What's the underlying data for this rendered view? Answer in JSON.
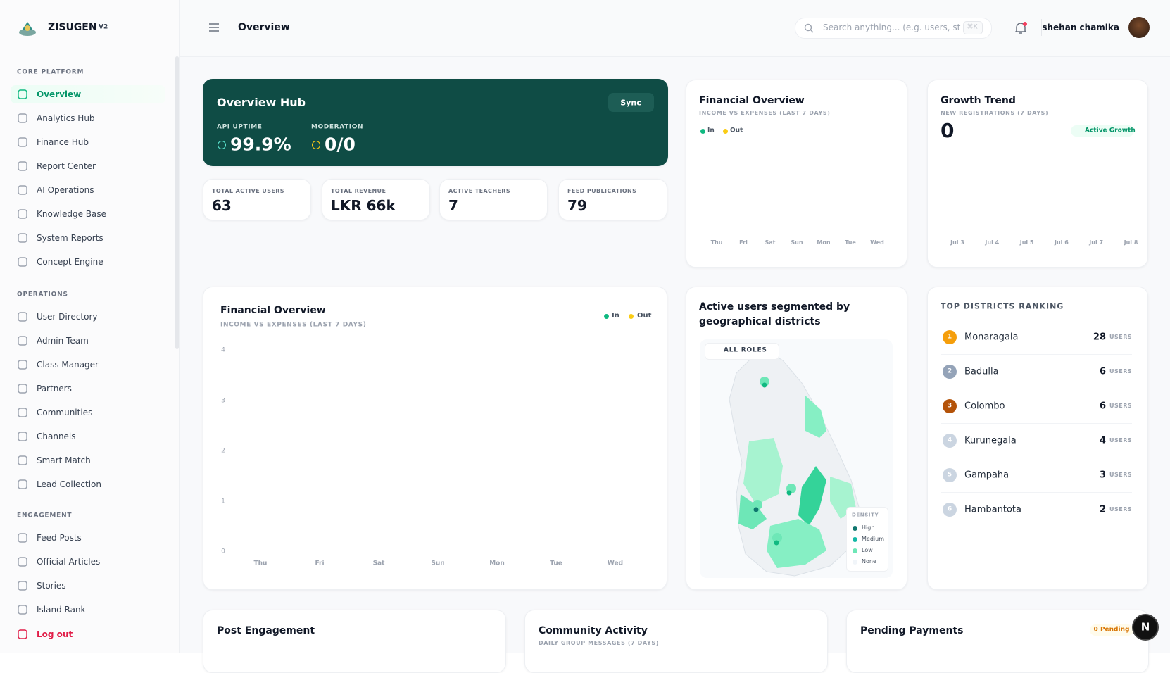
{
  "sidebar": {
    "brand": "ZISUGEN",
    "version": "V2",
    "sections": [
      {
        "title": "CORE PLATFORM",
        "items": [
          "Overview",
          "Analytics Hub",
          "Finance Hub",
          "Report Center",
          "AI Operations",
          "Knowledge Base",
          "System Reports",
          "Concept Engine"
        ]
      },
      {
        "title": "OPERATIONS",
        "items": [
          "User Directory",
          "Admin Team",
          "Class Manager",
          "Partners",
          "Communities",
          "Channels",
          "Smart Match",
          "Lead Collection"
        ]
      },
      {
        "title": "ENGAGEMENT",
        "items": [
          "Feed Posts",
          "Official Articles",
          "Stories",
          "Island Rank"
        ]
      }
    ],
    "logout": "Log out"
  },
  "header": {
    "title": "Overview",
    "search_placeholder": "Search anything... (e.g. users, st",
    "shortcut": "⌘K",
    "user": "shehan chamika"
  },
  "hub": {
    "title": "Overview Hub",
    "sync": "Sync",
    "metrics": [
      {
        "label": "API UPTIME",
        "value": "99.9%"
      },
      {
        "label": "MODERATION",
        "value": "0/0"
      }
    ]
  },
  "stats": [
    {
      "label": "TOTAL ACTIVE USERS",
      "value": 63
    },
    {
      "label": "TOTAL REVENUE",
      "value": "LKR 66k"
    },
    {
      "label": "ACTIVE TEACHERS",
      "value": 7
    },
    {
      "label": "FEED PUBLICATIONS",
      "value": 79
    }
  ],
  "finance_small": {
    "title": "Financial Overview",
    "subtitle": "INCOME VS EXPENSES (LAST 7 DAYS)",
    "legend": [
      "In",
      "Out"
    ],
    "categories": [
      "Thu",
      "Fri",
      "Sat",
      "Sun",
      "Mon",
      "Tue",
      "Wed"
    ]
  },
  "growth": {
    "title": "Growth Trend",
    "subtitle": "NEW REGISTRATIONS (7 DAYS)",
    "value": 0,
    "badge": "Active Growth",
    "categories": [
      "Jul 3",
      "Jul 4",
      "Jul 5",
      "Jul 6",
      "Jul 7",
      "Jul 8"
    ]
  },
  "finance_large": {
    "title": "Financial Overview",
    "subtitle": "INCOME VS EXPENSES (LAST 7 DAYS)",
    "legend": [
      "In",
      "Out"
    ],
    "categories": [
      "Thu",
      "Fri",
      "Sat",
      "Sun",
      "Mon",
      "Tue",
      "Wed"
    ],
    "yticks": [
      0,
      1,
      2,
      3,
      4
    ]
  },
  "map": {
    "title": "Active users segmented by geographical districts",
    "filter": "ALL ROLES",
    "legend_title": "DENSITY",
    "legend": [
      "High",
      "Medium",
      "Low",
      "None"
    ]
  },
  "ranking": {
    "title": "TOP DISTRICTS RANKING",
    "unit": "USERS",
    "rows": [
      {
        "rank": 1,
        "name": "Monaragala",
        "count": 28
      },
      {
        "rank": 2,
        "name": "Badulla",
        "count": 6
      },
      {
        "rank": 3,
        "name": "Colombo",
        "count": 6
      },
      {
        "rank": 4,
        "name": "Kurunegala",
        "count": 4
      },
      {
        "rank": 5,
        "name": "Gampaha",
        "count": 3
      },
      {
        "rank": 6,
        "name": "Hambantota",
        "count": 2
      }
    ]
  },
  "bottom": {
    "post": {
      "title": "Post Engagement"
    },
    "community": {
      "title": "Community Activity",
      "subtitle": "DAILY GROUP MESSAGES (7 DAYS)"
    },
    "payments": {
      "title": "Pending Payments",
      "badge": "0 Pending"
    }
  },
  "dev_badge": "N"
}
